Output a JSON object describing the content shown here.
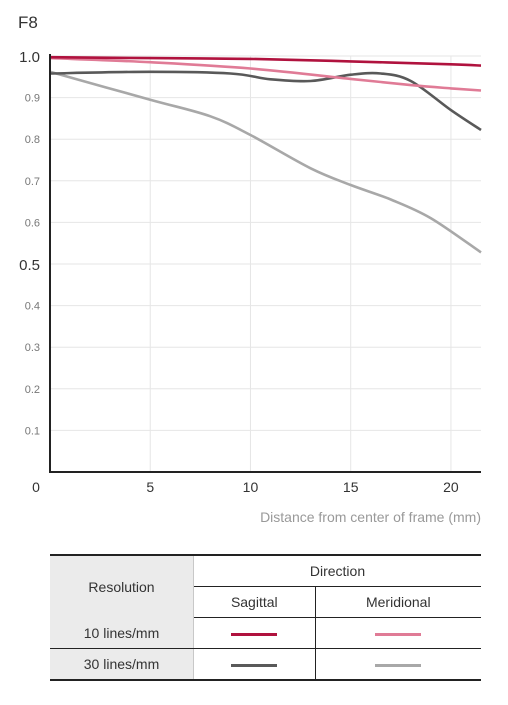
{
  "panel_title": "F8",
  "chart_data": {
    "type": "line",
    "title": "F8",
    "xlabel": "Distance from center of frame (mm)",
    "ylabel": "",
    "xlim": [
      0,
      21.5
    ],
    "ylim": [
      0,
      1.0
    ],
    "x_ticks": [
      {
        "value": 0,
        "label": "0"
      },
      {
        "value": 5,
        "label": "5"
      },
      {
        "value": 10,
        "label": "10"
      },
      {
        "value": 15,
        "label": "15"
      },
      {
        "value": 20,
        "label": "20"
      }
    ],
    "y_ticks": [
      {
        "value": 1.0,
        "label": "1.0",
        "major": true
      },
      {
        "value": 0.9,
        "label": "0.9",
        "major": false
      },
      {
        "value": 0.8,
        "label": "0.8",
        "major": false
      },
      {
        "value": 0.7,
        "label": "0.7",
        "major": false
      },
      {
        "value": 0.6,
        "label": "0.6",
        "major": false
      },
      {
        "value": 0.5,
        "label": "0.5",
        "major": true
      },
      {
        "value": 0.4,
        "label": "0.4",
        "major": false
      },
      {
        "value": 0.3,
        "label": "0.3",
        "major": false
      },
      {
        "value": 0.2,
        "label": "0.2",
        "major": false
      },
      {
        "value": 0.1,
        "label": "0.1",
        "major": false
      }
    ],
    "grid": true,
    "series": [
      {
        "name": "10 lines/mm Sagittal",
        "color": "#b0123e",
        "x": [
          0,
          5,
          10,
          15,
          20,
          21.5
        ],
        "y": [
          0.997,
          0.995,
          0.993,
          0.987,
          0.98,
          0.977
        ]
      },
      {
        "name": "10 lines/mm Meridional",
        "color": "#e07b96",
        "x": [
          0,
          5,
          10,
          15,
          18,
          20,
          21.5
        ],
        "y": [
          0.995,
          0.985,
          0.97,
          0.945,
          0.93,
          0.922,
          0.917
        ]
      },
      {
        "name": "30 lines/mm Sagittal",
        "color": "#595959",
        "x": [
          0,
          5,
          9,
          11,
          13,
          15,
          16.5,
          18,
          20,
          21.5
        ],
        "y": [
          0.958,
          0.962,
          0.958,
          0.944,
          0.94,
          0.955,
          0.958,
          0.94,
          0.87,
          0.822
        ]
      },
      {
        "name": "30 lines/mm Meridional",
        "color": "#a8a8a8",
        "x": [
          0,
          5,
          8,
          10,
          13,
          15,
          17,
          19,
          21.5
        ],
        "y": [
          0.962,
          0.895,
          0.855,
          0.81,
          0.73,
          0.69,
          0.655,
          0.61,
          0.528
        ]
      }
    ]
  },
  "legend_table": {
    "resolution_header": "Resolution",
    "direction_header": "Direction",
    "sagittal_label": "Sagittal",
    "meridional_label": "Meridional",
    "rows": [
      {
        "label": "10 lines/mm",
        "sagittal_color": "#b0123e",
        "meridional_color": "#e07b96"
      },
      {
        "label": "30 lines/mm",
        "sagittal_color": "#595959",
        "meridional_color": "#a8a8a8"
      }
    ]
  }
}
